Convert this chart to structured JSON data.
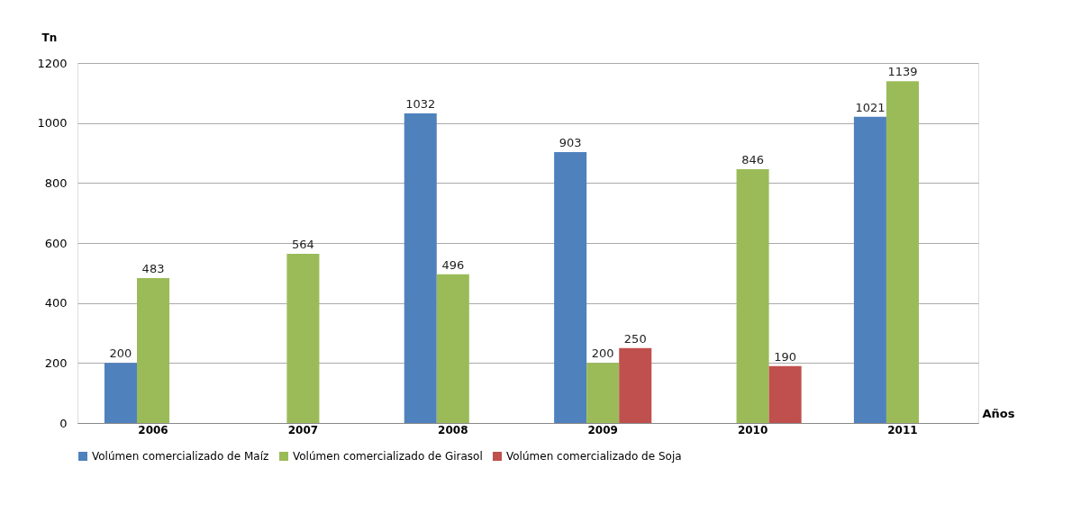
{
  "chart_data": {
    "type": "bar",
    "ylabel": "Tn",
    "xlabel": "Años",
    "categories": [
      "2006",
      "2007",
      "2008",
      "2009",
      "2010",
      "2011"
    ],
    "series": [
      {
        "name": "Volúmen comercializado de Maíz",
        "color": "#4f81bd",
        "values": [
          200,
          null,
          1032,
          903,
          null,
          1021
        ]
      },
      {
        "name": "Volúmen comercializado de Girasol",
        "color": "#9bbb59",
        "values": [
          483,
          564,
          496,
          200,
          846,
          1139
        ]
      },
      {
        "name": "Volúmen comercializado de Soja",
        "color": "#c0504d",
        "values": [
          null,
          null,
          null,
          250,
          190,
          null
        ]
      }
    ],
    "ylim": [
      0,
      1200
    ],
    "yticks": [
      0,
      200,
      400,
      600,
      800,
      1000,
      1200
    ],
    "grid": "y",
    "legend": "bottom",
    "data_labels": true
  }
}
